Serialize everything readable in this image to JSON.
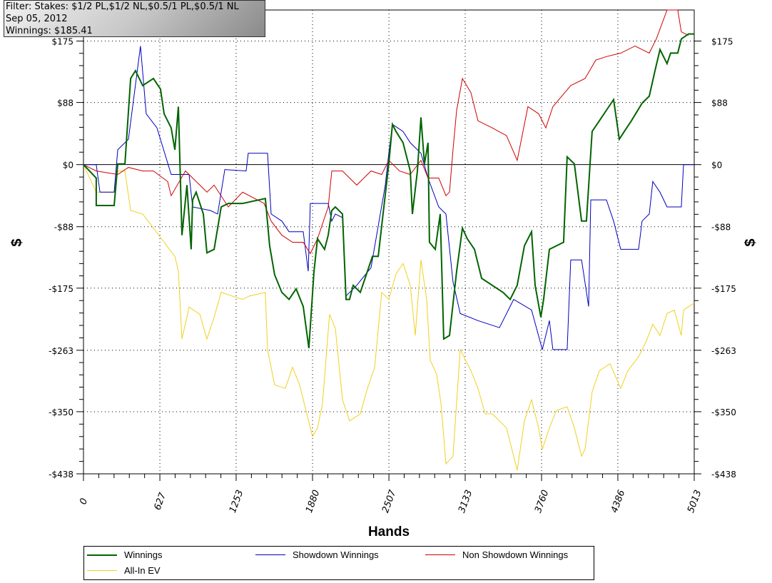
{
  "info_box": {
    "filter": "Filter: Stakes: $1/2 PL,$1/2 NL,$0.5/1 PL,$0.5/1 NL",
    "date": "Sep 05, 2012",
    "winnings": "Winnings: $185.41"
  },
  "chart_data": {
    "type": "line",
    "title": "",
    "xlabel": "Hands",
    "ylabel": "$",
    "xlim": [
      0,
      5013
    ],
    "ylim": [
      -438,
      219
    ],
    "grid": true,
    "legend_placement": "bottom",
    "x_ticks": [
      0,
      627,
      1253,
      1880,
      2507,
      3133,
      3760,
      4386,
      5013
    ],
    "x_tick_labels": [
      "0",
      "627",
      "1253",
      "1880",
      "2507",
      "3133",
      "3760",
      "4386",
      "5013"
    ],
    "y_ticks": [
      175,
      88,
      0,
      -88,
      -175,
      -263,
      -350,
      -438
    ],
    "y_tick_labels": [
      "$175",
      "$88",
      "$0",
      "-$88",
      "-$175",
      "-$263",
      "-$350",
      "-$438"
    ],
    "series": [
      {
        "name": "Winnings",
        "color": "#006400",
        "x": [
          0,
          105,
          105,
          252,
          281,
          340,
          387,
          427,
          486,
          574,
          632,
          662,
          720,
          750,
          779,
          808,
          849,
          884,
          896,
          925,
          984,
          1013,
          1072,
          1130,
          1189,
          1306,
          1493,
          1528,
          1569,
          1628,
          1687,
          1745,
          1804,
          1850,
          1892,
          1921,
          1979,
          2009,
          2038,
          2067,
          2126,
          2155,
          2184,
          2214,
          2272,
          2331,
          2372,
          2419,
          2506,
          2536,
          2565,
          2623,
          2682,
          2700,
          2741,
          2770,
          2799,
          2828,
          2840,
          2887,
          2928,
          2957,
          3004,
          3063,
          3110,
          3150,
          3209,
          3268,
          3355,
          3443,
          3502,
          3560,
          3619,
          3678,
          3707,
          3754,
          3777,
          3824,
          3941,
          3970,
          4029,
          4088,
          4128,
          4175,
          4234,
          4292,
          4351,
          4398,
          4439,
          4497,
          4585,
          4644,
          4691,
          4732,
          4790,
          4819,
          4878,
          4907,
          4966,
          5013
        ],
        "y": [
          0,
          -19,
          -58,
          -58,
          1,
          1,
          122,
          133,
          112,
          122,
          107,
          72,
          52,
          21,
          82,
          -100,
          -29,
          -120,
          -50,
          -39,
          -70,
          -125,
          -120,
          -60,
          -55,
          -55,
          -48,
          -115,
          -156,
          -181,
          -191,
          -176,
          -201,
          -260,
          -151,
          -105,
          -120,
          -100,
          -65,
          -60,
          -70,
          -191,
          -191,
          -171,
          -181,
          -151,
          -130,
          -130,
          1,
          57,
          47,
          31,
          -9,
          -70,
          -9,
          67,
          1,
          31,
          -110,
          -120,
          -70,
          -247,
          -242,
          -151,
          -90,
          -105,
          -120,
          -161,
          -171,
          -181,
          -191,
          -171,
          -115,
          -95,
          -171,
          -216,
          -191,
          -120,
          -110,
          11,
          1,
          -80,
          -80,
          47,
          62,
          77,
          92,
          36,
          47,
          62,
          87,
          97,
          133,
          163,
          143,
          158,
          158,
          178,
          185,
          185
        ]
      },
      {
        "name": "Showdown Winnings",
        "color": "#0000c0",
        "x": [
          0,
          105,
          135,
          252,
          281,
          369,
          468,
          515,
          603,
          720,
          867,
          896,
          1042,
          1101,
          1160,
          1335,
          1352,
          1511,
          1540,
          1628,
          1687,
          1804,
          1845,
          1862,
          2009,
          2038,
          2067,
          2126,
          2155,
          2243,
          2360,
          2477,
          2506,
          2536,
          2623,
          2682,
          2770,
          2828,
          2916,
          2975,
          3033,
          3092,
          3238,
          3414,
          3531,
          3678,
          3766,
          3824,
          3853,
          3970,
          3999,
          4088,
          4146,
          4164,
          4292,
          4351,
          4410,
          4556,
          4585,
          4644,
          4673,
          4732,
          4790,
          4907,
          4925,
          5013
        ],
        "y": [
          0,
          0,
          -39,
          -39,
          21,
          36,
          168,
          72,
          52,
          -14,
          -14,
          -60,
          -65,
          -70,
          -7,
          -9,
          16,
          16,
          -70,
          -80,
          -95,
          -95,
          -151,
          -55,
          -55,
          -80,
          -70,
          -75,
          -186,
          -171,
          -146,
          -29,
          16,
          57,
          47,
          31,
          16,
          -19,
          -60,
          -70,
          -166,
          -211,
          -221,
          -231,
          -191,
          -206,
          -262,
          -221,
          -262,
          -262,
          -135,
          -135,
          -201,
          -50,
          -50,
          -80,
          -120,
          -120,
          -80,
          -70,
          -24,
          -39,
          -60,
          -60,
          0,
          0
        ]
      },
      {
        "name": "Non Showdown Winnings",
        "color": "#d00000",
        "x": [
          0,
          105,
          281,
          369,
          486,
          574,
          691,
          720,
          837,
          955,
          1013,
          1072,
          1189,
          1306,
          1482,
          1540,
          1628,
          1716,
          1804,
          1862,
          1921,
          2009,
          2038,
          2126,
          2243,
          2360,
          2448,
          2506,
          2594,
          2682,
          2770,
          2828,
          2916,
          2975,
          3004,
          3033,
          3063,
          3110,
          3180,
          3238,
          3355,
          3472,
          3560,
          3648,
          3736,
          3795,
          3853,
          3999,
          4117,
          4205,
          4292,
          4410,
          4527,
          4644,
          4702,
          4790,
          4878,
          4907,
          4966
        ],
        "y": [
          0,
          -9,
          -14,
          -4,
          -9,
          -9,
          -24,
          -44,
          -9,
          -29,
          -39,
          -29,
          -60,
          -39,
          -55,
          -80,
          -100,
          -110,
          -110,
          -126,
          -105,
          -60,
          -9,
          -9,
          -29,
          -9,
          -14,
          6,
          -9,
          -14,
          6,
          -19,
          -19,
          -44,
          -39,
          21,
          77,
          122,
          102,
          62,
          52,
          41,
          6,
          82,
          72,
          52,
          82,
          112,
          122,
          148,
          153,
          158,
          168,
          158,
          178,
          219,
          219,
          188,
          183
        ]
      },
      {
        "name": "All-In EV",
        "color": "#f0d020",
        "x": [
          0,
          105,
          252,
          281,
          340,
          387,
          486,
          574,
          662,
          750,
          779,
          808,
          867,
          955,
          1013,
          1072,
          1130,
          1218,
          1306,
          1364,
          1493,
          1511,
          1569,
          1657,
          1716,
          1774,
          1833,
          1880,
          1921,
          1962,
          2020,
          2067,
          2126,
          2184,
          2272,
          2331,
          2390,
          2448,
          2506,
          2565,
          2623,
          2682,
          2723,
          2770,
          2817,
          2846,
          2899,
          2934,
          2975,
          3033,
          3092,
          3180,
          3238,
          3297,
          3355,
          3472,
          3531,
          3560,
          3619,
          3678,
          3736,
          3766,
          3824,
          3882,
          3970,
          4029,
          4088,
          4117,
          4175,
          4234,
          4322,
          4410,
          4468,
          4556,
          4615,
          4673,
          4732,
          4790,
          4849,
          4907,
          4925,
          5013
        ],
        "y": [
          0,
          -39,
          -39,
          -9,
          -9,
          -65,
          -70,
          -90,
          -110,
          -130,
          -151,
          -247,
          -202,
          -212,
          -247,
          -216,
          -181,
          -186,
          -191,
          -186,
          -181,
          -262,
          -312,
          -317,
          -287,
          -312,
          -353,
          -385,
          -373,
          -338,
          -212,
          -232,
          -333,
          -363,
          -353,
          -317,
          -287,
          -181,
          -191,
          -155,
          -140,
          -171,
          -242,
          -135,
          -191,
          -277,
          -297,
          -338,
          -424,
          -413,
          -262,
          -292,
          -317,
          -353,
          -353,
          -373,
          -413,
          -433,
          -363,
          -333,
          -373,
          -403,
          -373,
          -348,
          -343,
          -373,
          -413,
          -403,
          -322,
          -292,
          -282,
          -317,
          -292,
          -272,
          -252,
          -226,
          -242,
          -211,
          -206,
          -242,
          -206,
          -196
        ]
      }
    ]
  },
  "legend": {
    "items": [
      "Winnings",
      "Showdown Winnings",
      "Non Showdown Winnings",
      "All-In EV"
    ]
  }
}
